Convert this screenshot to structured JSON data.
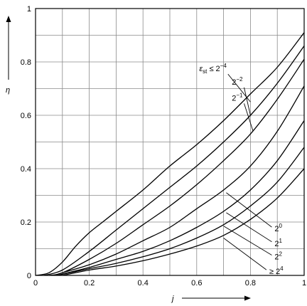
{
  "chart_data": {
    "type": "line",
    "title": "",
    "xlabel": "j",
    "ylabel": "η",
    "xlim": [
      0,
      1
    ],
    "ylim": [
      0,
      1
    ],
    "x_ticks": [
      "0",
      "0.2",
      "0.4",
      "0.6",
      "0.8",
      "1"
    ],
    "y_ticks": [
      "0",
      "0.2",
      "0.4",
      "0.6",
      "0.8",
      "1"
    ],
    "grid": true,
    "series": [
      {
        "name": "ε_st ≤ 2⁻⁴",
        "x": [
          0,
          0.05,
          0.1,
          0.15,
          0.2,
          0.25,
          0.3,
          0.4,
          0.5,
          0.6,
          0.7,
          0.8,
          0.9,
          1.0
        ],
        "y": [
          0,
          0.01,
          0.05,
          0.11,
          0.16,
          0.2,
          0.24,
          0.32,
          0.41,
          0.49,
          0.58,
          0.68,
          0.78,
          0.91
        ]
      },
      {
        "name": "2⁻²",
        "x": [
          0.03,
          0.1,
          0.2,
          0.3,
          0.4,
          0.5,
          0.6,
          0.7,
          0.8,
          0.9,
          1.0
        ],
        "y": [
          0,
          0.02,
          0.09,
          0.17,
          0.25,
          0.33,
          0.41,
          0.5,
          0.6,
          0.72,
          0.86
        ]
      },
      {
        "name": "2⁻¹",
        "x": [
          0.05,
          0.1,
          0.2,
          0.3,
          0.4,
          0.5,
          0.6,
          0.7,
          0.8,
          0.9,
          1.0
        ],
        "y": [
          0,
          0.01,
          0.06,
          0.12,
          0.19,
          0.26,
          0.34,
          0.43,
          0.53,
          0.66,
          0.81
        ]
      },
      {
        "name": "2⁰",
        "x": [
          0.07,
          0.1,
          0.2,
          0.3,
          0.4,
          0.5,
          0.6,
          0.7,
          0.8,
          0.9,
          1.0
        ],
        "y": [
          0,
          0.01,
          0.04,
          0.08,
          0.13,
          0.18,
          0.25,
          0.32,
          0.41,
          0.54,
          0.71
        ]
      },
      {
        "name": "2¹",
        "x": [
          0.08,
          0.1,
          0.2,
          0.3,
          0.4,
          0.5,
          0.6,
          0.7,
          0.8,
          0.9,
          1.0
        ],
        "y": [
          0,
          0.005,
          0.03,
          0.06,
          0.09,
          0.13,
          0.18,
          0.24,
          0.32,
          0.43,
          0.58
        ]
      },
      {
        "name": "2²",
        "x": [
          0.09,
          0.1,
          0.2,
          0.3,
          0.4,
          0.5,
          0.6,
          0.7,
          0.8,
          0.9,
          1.0
        ],
        "y": [
          0,
          0.004,
          0.025,
          0.045,
          0.07,
          0.1,
          0.14,
          0.19,
          0.26,
          0.35,
          0.48
        ]
      },
      {
        "name": "≥ 2⁴",
        "x": [
          0.1,
          0.2,
          0.3,
          0.4,
          0.5,
          0.6,
          0.7,
          0.8,
          0.9,
          1.0
        ],
        "y": [
          0,
          0.02,
          0.035,
          0.055,
          0.08,
          0.11,
          0.15,
          0.21,
          0.29,
          0.4
        ]
      }
    ],
    "annotations": [
      {
        "series": 0,
        "text": "ε",
        "sub": "st",
        "rest": " ≤ 2",
        "sup": "−4",
        "at": [
          0.8,
          0.65
        ],
        "label": [
          0.6,
          0.765
        ]
      },
      {
        "series": 1,
        "text": "2",
        "sup": "−2",
        "at": [
          0.8,
          0.6
        ],
        "label": [
          0.66,
          0.715
        ]
      },
      {
        "series": 2,
        "text": "2",
        "sup": "−1",
        "at": [
          0.81,
          0.54
        ],
        "label": [
          0.66,
          0.655
        ]
      },
      {
        "series": 3,
        "text": "2",
        "sup": "0",
        "at": [
          0.71,
          0.31
        ],
        "label": [
          0.89,
          0.165
        ]
      },
      {
        "series": 4,
        "text": "2",
        "sup": "1",
        "at": [
          0.71,
          0.235
        ],
        "label": [
          0.89,
          0.11
        ]
      },
      {
        "series": 5,
        "text": "2",
        "sup": "2",
        "at": [
          0.7,
          0.185
        ],
        "label": [
          0.89,
          0.06
        ]
      },
      {
        "series": 6,
        "text": "≥ 2",
        "sup": "4",
        "at": [
          0.7,
          0.14
        ],
        "label": [
          0.87,
          0.005
        ]
      }
    ]
  }
}
